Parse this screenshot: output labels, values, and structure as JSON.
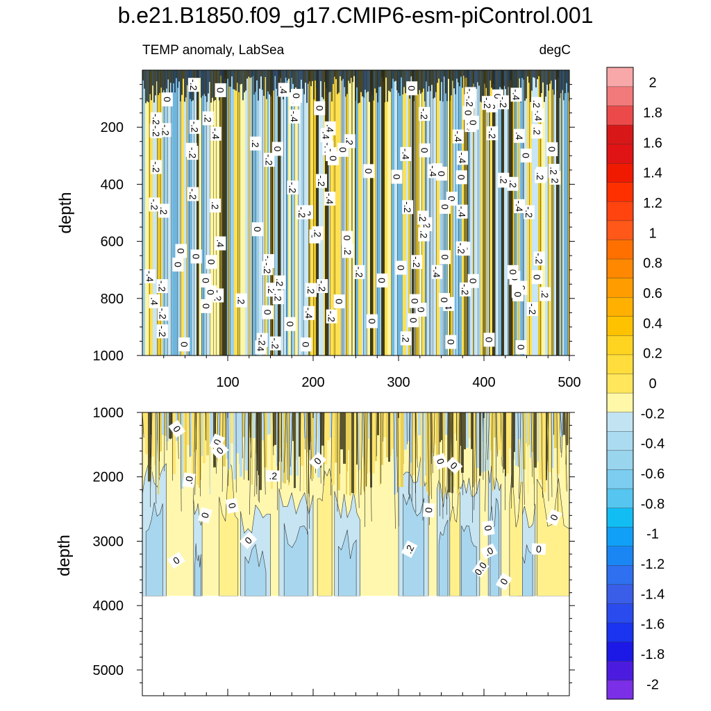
{
  "title": "b.e21.B1850.f09_g17.CMIP6-esm-piControl.001",
  "subtitle_left": "TEMP anomaly, LabSea",
  "subtitle_right": "degC",
  "chart_data": [
    {
      "type": "heatmap",
      "panel": "upper",
      "ylabel": "depth",
      "xlabel": "",
      "xlim": [
        0,
        500
      ],
      "ylim": [
        1000,
        0
      ],
      "xticks": [
        "100",
        "200",
        "300",
        "400",
        "500"
      ],
      "yticks": [
        "200",
        "400",
        "600",
        "800",
        "1000"
      ],
      "contour_labels": [
        "0",
        "-.2",
        ".2",
        "-.4",
        "-.2",
        "0",
        ".2",
        "0",
        "-.4",
        "0",
        "-.2",
        "0",
        "0",
        "-.2",
        ".4"
      ]
    },
    {
      "type": "heatmap",
      "panel": "lower",
      "ylabel": "depth",
      "xlabel": "",
      "xlim": [
        0,
        500
      ],
      "ylim": [
        5400,
        1000
      ],
      "ocean_bottom_depth": 3850,
      "xticks": [],
      "yticks": [
        "1000",
        "2000",
        "3000",
        "4000",
        "5000"
      ],
      "contour_labels": [
        "0",
        "0",
        "0",
        "0",
        "0",
        "0",
        ".0",
        "0",
        "0",
        "0",
        "0",
        ".2",
        "0",
        ".0",
        "0",
        ".2",
        "0.0",
        "0",
        "0",
        "0"
      ]
    }
  ],
  "colorbar": {
    "units": "degC",
    "min": -2.1,
    "max": 2.1,
    "step": 0.1,
    "labels": [
      "2",
      "1.8",
      "1.6",
      "1.4",
      "1.2",
      "1",
      "0.8",
      "0.6",
      "0.4",
      "0.2",
      "0",
      "-0.2",
      "-0.4",
      "-0.6",
      "-0.8",
      "-1",
      "-1.2",
      "-1.4",
      "-1.6",
      "-1.8",
      "-2"
    ],
    "label_values": [
      2,
      1.8,
      1.6,
      1.4,
      1.2,
      1,
      0.8,
      0.6,
      0.4,
      0.2,
      0,
      -0.2,
      -0.4,
      -0.6,
      -0.8,
      -1,
      -1.2,
      -1.4,
      -1.6,
      -1.8,
      -2
    ]
  }
}
